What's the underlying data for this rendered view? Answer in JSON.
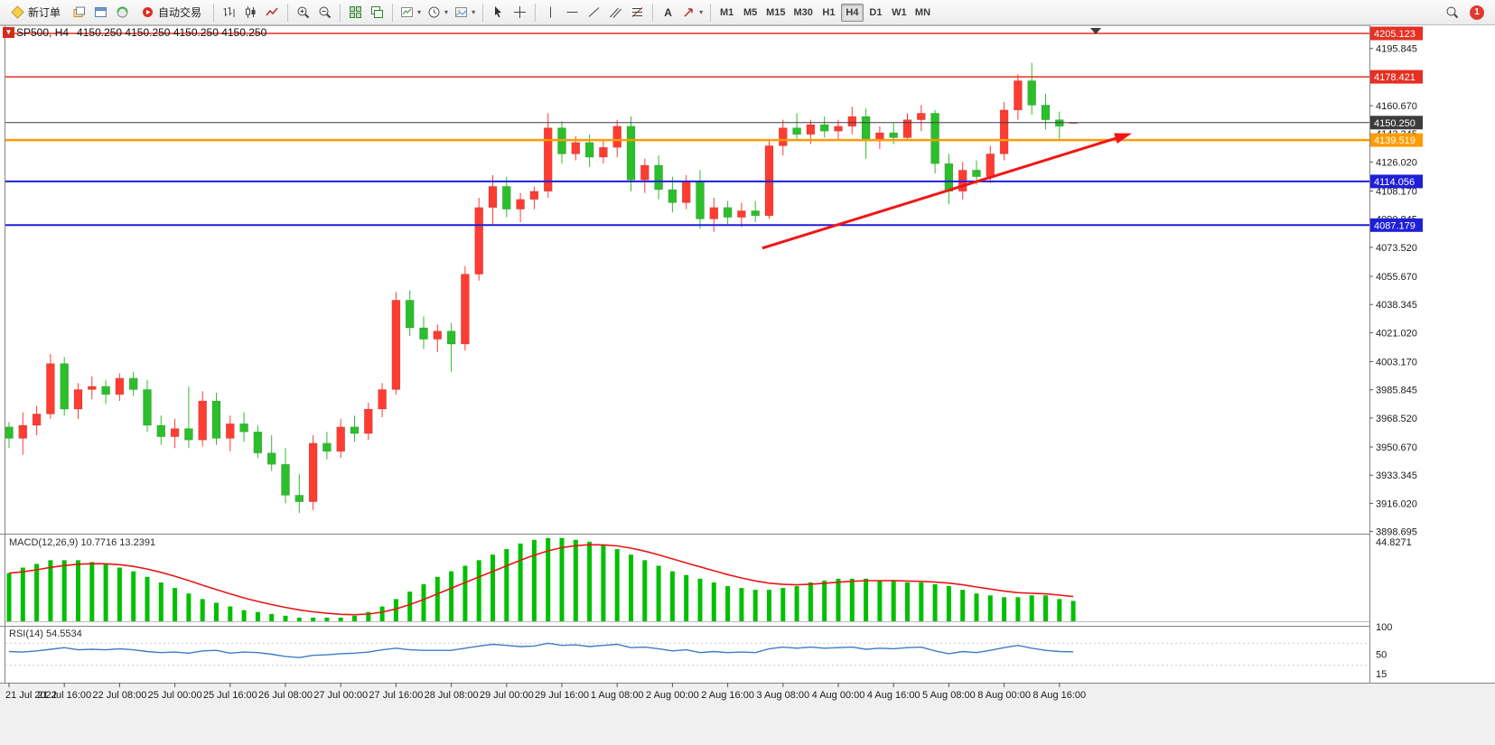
{
  "toolbar": {
    "new_order": "新订单",
    "auto_trading": "自动交易",
    "timeframes": [
      "M1",
      "M5",
      "M15",
      "M30",
      "H1",
      "H4",
      "D1",
      "W1",
      "MN"
    ],
    "active_timeframe": "H4",
    "notification_count": "1"
  },
  "chart": {
    "symbol_period": "SP500, H4",
    "ohlc_line": "4150.250 4150.250 4150.250 4150.250"
  },
  "chart_data": {
    "type": "candlestick",
    "symbol": "SP500",
    "timeframe": "H4",
    "ylim": [
      3892,
      4212
    ],
    "up_color": "#ff3c32",
    "down_color": "#2bbf2b",
    "candles": [
      [
        3963,
        3966,
        3950,
        3956
      ],
      [
        3956,
        3972,
        3946,
        3964
      ],
      [
        3964,
        3976,
        3958,
        3971
      ],
      [
        3971,
        4008,
        3968,
        4002
      ],
      [
        4002,
        4006,
        3970,
        3974
      ],
      [
        3974,
        3990,
        3968,
        3986
      ],
      [
        3986,
        3994,
        3980,
        3988
      ],
      [
        3988,
        3992,
        3977,
        3983
      ],
      [
        3983,
        3996,
        3979,
        3993
      ],
      [
        3993,
        3997,
        3982,
        3986
      ],
      [
        3986,
        3992,
        3960,
        3964
      ],
      [
        3964,
        3970,
        3952,
        3957
      ],
      [
        3957,
        3968,
        3950,
        3962
      ],
      [
        3962,
        3988,
        3950,
        3955
      ],
      [
        3955,
        3985,
        3951,
        3979
      ],
      [
        3979,
        3984,
        3952,
        3956
      ],
      [
        3956,
        3970,
        3948,
        3965
      ],
      [
        3965,
        3972,
        3954,
        3960
      ],
      [
        3960,
        3964,
        3944,
        3947
      ],
      [
        3947,
        3958,
        3936,
        3940
      ],
      [
        3940,
        3950,
        3916,
        3921
      ],
      [
        3921,
        3934,
        3910,
        3917
      ],
      [
        3917,
        3958,
        3912,
        3953
      ],
      [
        3953,
        3960,
        3943,
        3948
      ],
      [
        3948,
        3968,
        3944,
        3963
      ],
      [
        3963,
        3970,
        3954,
        3959
      ],
      [
        3959,
        3978,
        3955,
        3974
      ],
      [
        3974,
        3990,
        3969,
        3986
      ],
      [
        3986,
        4046,
        3983,
        4041
      ],
      [
        4041,
        4047,
        4019,
        4024
      ],
      [
        4024,
        4031,
        4011,
        4017
      ],
      [
        4017,
        4026,
        4009,
        4022
      ],
      [
        4022,
        4027,
        3997,
        4014
      ],
      [
        4014,
        4062,
        4010,
        4057
      ],
      [
        4057,
        4104,
        4053,
        4098
      ],
      [
        4098,
        4118,
        4087,
        4111
      ],
      [
        4111,
        4117,
        4092,
        4097
      ],
      [
        4097,
        4107,
        4089,
        4103
      ],
      [
        4103,
        4111,
        4097,
        4108
      ],
      [
        4108,
        4156,
        4104,
        4147
      ],
      [
        4147,
        4151,
        4125,
        4131
      ],
      [
        4131,
        4142,
        4127,
        4138
      ],
      [
        4138,
        4143,
        4123,
        4129
      ],
      [
        4129,
        4139,
        4125,
        4135
      ],
      [
        4135,
        4152,
        4129,
        4148
      ],
      [
        4148,
        4154,
        4108,
        4115
      ],
      [
        4115,
        4128,
        4107,
        4124
      ],
      [
        4124,
        4130,
        4103,
        4109
      ],
      [
        4109,
        4117,
        4095,
        4101
      ],
      [
        4101,
        4118,
        4097,
        4114
      ],
      [
        4114,
        4121,
        4085,
        4091
      ],
      [
        4091,
        4104,
        4083,
        4098
      ],
      [
        4098,
        4102,
        4087,
        4092
      ],
      [
        4092,
        4101,
        4086,
        4096
      ],
      [
        4096,
        4102,
        4089,
        4093
      ],
      [
        4093,
        4140,
        4091,
        4136
      ],
      [
        4136,
        4152,
        4130,
        4147
      ],
      [
        4147,
        4156,
        4139,
        4143
      ],
      [
        4143,
        4152,
        4137,
        4149
      ],
      [
        4149,
        4154,
        4141,
        4145
      ],
      [
        4145,
        4152,
        4139,
        4148
      ],
      [
        4148,
        4160,
        4143,
        4154
      ],
      [
        4154,
        4159,
        4128,
        4139
      ],
      [
        4139,
        4148,
        4134,
        4144
      ],
      [
        4144,
        4150,
        4137,
        4141
      ],
      [
        4141,
        4156,
        4139,
        4152
      ],
      [
        4152,
        4161,
        4145,
        4156
      ],
      [
        4156,
        4158,
        4119,
        4125
      ],
      [
        4125,
        4131,
        4100,
        4108
      ],
      [
        4108,
        4126,
        4103,
        4121
      ],
      [
        4121,
        4127,
        4112,
        4117
      ],
      [
        4117,
        4136,
        4113,
        4131
      ],
      [
        4131,
        4163,
        4127,
        4158
      ],
      [
        4158,
        4180,
        4152,
        4176
      ],
      [
        4176,
        4187,
        4155,
        4161
      ],
      [
        4161,
        4168,
        4146,
        4152
      ],
      [
        4152,
        4157,
        4139,
        4148
      ],
      [
        4150.25,
        4150.25,
        4150.25,
        4150.25
      ]
    ],
    "time_labels": [
      [
        0,
        "21 Jul 2022"
      ],
      [
        4,
        "21 Jul 16:00"
      ],
      [
        8,
        "22 Jul 08:00"
      ],
      [
        12,
        "25 Jul 00:00"
      ],
      [
        16,
        "25 Jul 16:00"
      ],
      [
        20,
        "26 Jul 08:00"
      ],
      [
        24,
        "27 Jul 00:00"
      ],
      [
        28,
        "27 Jul 16:00"
      ],
      [
        32,
        "28 Jul 08:00"
      ],
      [
        36,
        "29 Jul 00:00"
      ],
      [
        40,
        "29 Jul 16:00"
      ],
      [
        44,
        "1 Aug 08:00"
      ],
      [
        48,
        "2 Aug 00:00"
      ],
      [
        52,
        "2 Aug 16:00"
      ],
      [
        56,
        "3 Aug 08:00"
      ],
      [
        60,
        "4 Aug 00:00"
      ],
      [
        64,
        "4 Aug 16:00"
      ],
      [
        68,
        "5 Aug 08:00"
      ],
      [
        72,
        "8 Aug 00:00"
      ],
      [
        76,
        "8 Aug 16:00"
      ]
    ],
    "price_axis_ticks": [
      "4195.845",
      "4160.670",
      "4143.345",
      "4126.020",
      "4108.170",
      "4090.845",
      "4073.520",
      "4055.670",
      "4038.345",
      "4021.020",
      "4003.170",
      "3985.845",
      "3968.520",
      "3950.670",
      "3933.345",
      "3916.020",
      "3898.695"
    ],
    "levels": [
      {
        "price": 4205.123,
        "label": "4205.123",
        "color": "#e53022",
        "width": 1.5
      },
      {
        "price": 4178.421,
        "label": "4178.421",
        "color": "#e53022",
        "width": 1.5
      },
      {
        "price": 4150.25,
        "label": "4150.250",
        "color": "#3c3c3c",
        "width": 1
      },
      {
        "price": 4139.519,
        "label": "4139.519",
        "color": "#ff9b00",
        "width": 2.5
      },
      {
        "price": 4114.056,
        "label": "4114.056",
        "color": "#1f1fd8",
        "width": 2
      },
      {
        "price": 4087.179,
        "label": "4087.179",
        "color": "#1f1fd8",
        "width": 2
      }
    ],
    "trend_arrow": {
      "from_index": 54.5,
      "from_price": 4073,
      "to_index": 81,
      "to_price": 4143,
      "color": "#f21515"
    },
    "macd": {
      "label": "MACD(12,26,9)",
      "values_text": "10.7716 13.2391",
      "scale_max_label": "44.8271",
      "hist_color": "#00c000",
      "signal_color": "#e81717",
      "histogram": [
        26,
        29,
        31,
        33,
        33,
        33,
        32,
        31,
        29,
        27,
        24,
        21,
        18,
        15,
        12,
        10,
        8,
        6,
        5,
        4,
        3,
        2,
        2,
        2,
        2,
        3,
        5,
        8,
        12,
        16,
        20,
        24,
        27,
        30,
        33,
        36,
        39,
        42,
        44,
        45,
        45,
        44,
        43,
        41,
        39,
        36,
        33,
        30,
        27,
        25,
        23,
        21,
        19,
        18,
        17,
        17,
        18,
        19,
        21,
        22,
        23,
        23,
        23,
        22,
        22,
        21,
        21,
        20,
        19,
        17,
        15,
        14,
        13,
        13,
        14,
        14,
        12,
        11
      ]
    },
    "rsi": {
      "label": "RSI(14)",
      "value_text": "54.5534",
      "line_color": "#3f7cc4",
      "values": [
        55,
        54,
        56,
        59,
        62,
        58,
        59,
        58,
        60,
        58,
        55,
        53,
        54,
        52,
        56,
        57,
        52,
        54,
        53,
        50,
        46,
        44,
        48,
        49,
        51,
        52,
        54,
        58,
        61,
        58,
        57,
        57,
        57,
        61,
        65,
        68,
        66,
        64,
        65,
        70,
        66,
        67,
        64,
        66,
        68,
        62,
        63,
        60,
        56,
        58,
        53,
        55,
        53,
        54,
        53,
        60,
        63,
        61,
        63,
        61,
        62,
        63,
        59,
        61,
        60,
        62,
        63,
        56,
        51,
        55,
        53,
        57,
        62,
        66,
        61,
        57,
        55,
        54.5
      ],
      "axis_labels": [
        [
          "100",
          100
        ],
        [
          "50",
          50
        ],
        [
          "15",
          15
        ]
      ]
    }
  }
}
